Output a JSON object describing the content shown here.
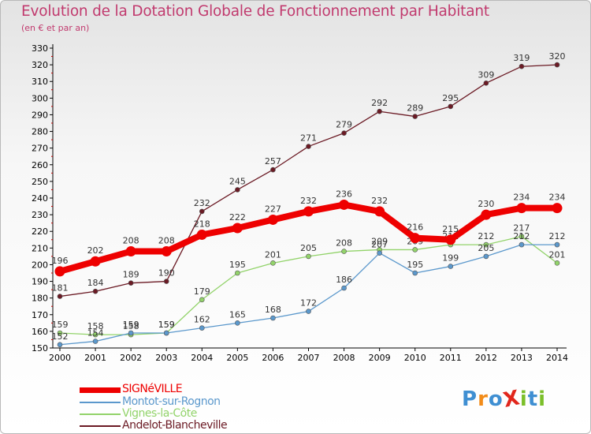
{
  "chart_data": {
    "type": "line",
    "title": "Evolution de la Dotation Globale de Fonctionnement par Habitant",
    "subtitle": "(en € et par an)",
    "xlabel": "",
    "ylabel": "",
    "ylim": [
      150,
      330
    ],
    "y_ticks": [
      150,
      160,
      170,
      180,
      190,
      200,
      210,
      220,
      230,
      240,
      250,
      260,
      270,
      280,
      290,
      300,
      310,
      320,
      330
    ],
    "x": [
      "2000",
      "2001",
      "2002",
      "2003",
      "2004",
      "2005",
      "2006",
      "2007",
      "2008",
      "2009",
      "2010",
      "2011",
      "2012",
      "2013",
      "2014"
    ],
    "grid": false,
    "legend_position": "bottom-left",
    "series": [
      {
        "name": "Andelot-Blancheville",
        "color": "#6b1a24",
        "values": [
          181,
          184,
          189,
          190,
          232,
          245,
          257,
          271,
          279,
          292,
          289,
          295,
          309,
          319,
          320
        ]
      },
      {
        "name": "Vignes-la-Côte",
        "color": "#92d36a",
        "values": [
          159,
          158,
          158,
          159,
          179,
          195,
          201,
          205,
          208,
          209,
          209,
          212,
          212,
          217,
          201
        ]
      },
      {
        "name": "Montot-sur-Rognon",
        "color": "#5b98cc",
        "values": [
          152,
          154,
          159,
          159,
          162,
          165,
          168,
          172,
          186,
          207,
          195,
          199,
          205,
          212,
          212
        ]
      },
      {
        "name": "SIGNéVILLE",
        "color": "#ee0000",
        "values": [
          196,
          202,
          208,
          208,
          218,
          222,
          227,
          232,
          236,
          232,
          216,
          215,
          230,
          234,
          234
        ]
      }
    ]
  },
  "legend": {
    "items": [
      {
        "label": "SIGNéVILLE",
        "color": "#ee0000"
      },
      {
        "label": "Montot-sur-Rognon",
        "color": "#5b98cc"
      },
      {
        "label": "Vignes-la-Côte",
        "color": "#92d36a"
      },
      {
        "label": "Andelot-Blancheville",
        "color": "#6b1a24"
      }
    ]
  },
  "logo": {
    "text": "ProXiti"
  }
}
